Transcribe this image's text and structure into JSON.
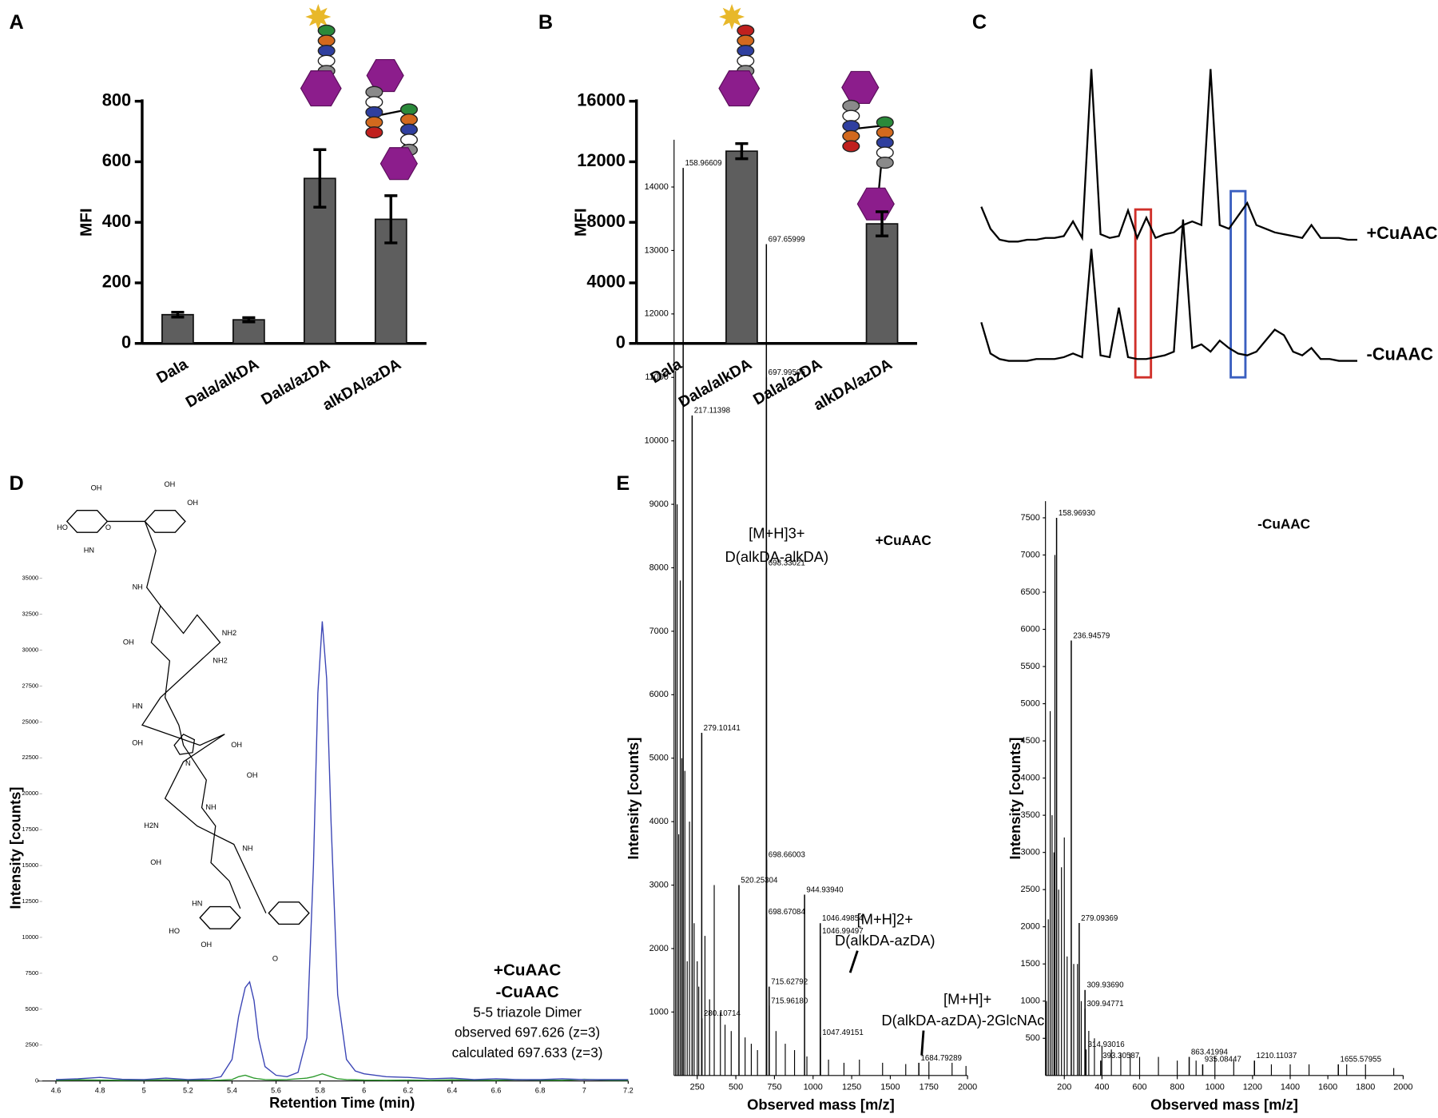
{
  "chart_data": [
    {
      "panel": "A",
      "type": "bar",
      "ylabel": "MFI",
      "categories": [
        "Dala",
        "Dala/alkDA",
        "Dala/azDA",
        "alkDA/azDA"
      ],
      "values": [
        95,
        78,
        545,
        410
      ],
      "errors": [
        8,
        7,
        95,
        78
      ],
      "color": "#5e5e5e",
      "ylim": [
        0,
        800
      ],
      "yticks": [
        0,
        200,
        400,
        600,
        800
      ]
    },
    {
      "panel": "B",
      "type": "bar",
      "ylabel": "MFI",
      "categories": [
        "Dala",
        "Dala/alkDA",
        "Dala/azDA",
        "alkDA/azDA"
      ],
      "values": [
        0,
        12700,
        0,
        7900
      ],
      "errors": [
        0,
        500,
        0,
        800
      ],
      "color": "#5e5e5e",
      "ylim": [
        0,
        16000
      ],
      "yticks": [
        0,
        4000,
        8000,
        12000,
        16000
      ]
    },
    {
      "panel": "C",
      "type": "traces",
      "series": [
        {
          "name": "+CuAAC",
          "color": "#000000",
          "values": [
            20,
            8,
            2,
            1,
            1,
            2,
            2,
            3,
            3,
            4,
            12,
            3,
            95,
            5,
            3,
            4,
            18,
            3,
            14,
            3,
            5,
            6,
            10,
            12,
            10,
            95,
            10,
            8,
            15,
            22,
            10,
            8,
            6,
            5,
            4,
            3,
            10,
            3,
            3,
            3,
            2,
            2
          ]
        },
        {
          "name": "-CuAAC",
          "color": "#000000",
          "values": [
            22,
            5,
            2,
            1,
            1,
            1,
            2,
            2,
            2,
            3,
            5,
            3,
            62,
            4,
            3,
            30,
            3,
            2,
            2,
            3,
            4,
            6,
            78,
            8,
            10,
            6,
            12,
            8,
            5,
            4,
            6,
            12,
            18,
            15,
            6,
            4,
            8,
            2,
            2,
            1,
            1,
            1
          ]
        }
      ]
    },
    {
      "panel": "D",
      "type": "line",
      "xlabel": "Retention Time (min)",
      "ylabel": "Intensity [counts]",
      "x": [
        4.6,
        4.7,
        4.8,
        4.9,
        5.0,
        5.1,
        5.2,
        5.3,
        5.35,
        5.4,
        5.43,
        5.46,
        5.48,
        5.5,
        5.52,
        5.55,
        5.6,
        5.65,
        5.7,
        5.74,
        5.77,
        5.79,
        5.81,
        5.83,
        5.85,
        5.88,
        5.92,
        5.96,
        6.0,
        6.1,
        6.2,
        6.3,
        6.4,
        6.5,
        6.6,
        6.7,
        6.8,
        6.9,
        7.0,
        7.1,
        7.2
      ],
      "series": [
        {
          "name": "+CuAAC",
          "color": "#3b45b5",
          "values": [
            100,
            150,
            250,
            120,
            100,
            200,
            100,
            150,
            300,
            1500,
            4500,
            6500,
            6900,
            5600,
            3000,
            1000,
            400,
            300,
            600,
            3000,
            15000,
            27000,
            32000,
            28000,
            18000,
            6000,
            1500,
            700,
            500,
            300,
            250,
            150,
            200,
            100,
            150,
            100,
            100,
            150,
            100,
            100,
            100
          ]
        },
        {
          "name": "-CuAAC",
          "color": "#2e9a2e",
          "values": [
            50,
            80,
            60,
            50,
            60,
            80,
            60,
            50,
            60,
            100,
            300,
            400,
            300,
            200,
            150,
            100,
            80,
            100,
            150,
            200,
            300,
            400,
            500,
            400,
            300,
            150,
            100,
            80,
            60,
            50,
            60,
            50,
            80,
            60,
            50,
            100,
            60,
            50,
            120,
            60,
            50
          ]
        }
      ],
      "xlim": [
        4.6,
        7.2
      ],
      "xticks": [
        4.6,
        4.8,
        5,
        5.2,
        5.4,
        5.6,
        5.8,
        6,
        6.2,
        6.4,
        6.6,
        6.8,
        7,
        7.2
      ],
      "ylim": [
        0,
        35000
      ],
      "yticks": [
        0,
        2500,
        5000,
        7500,
        10000,
        12500,
        15000,
        17500,
        20000,
        22500,
        25000,
        27500,
        30000,
        32500,
        35000
      ],
      "annotations": [
        "5-5 triazole Dimer",
        "observed 697.626 (z=3)",
        "calculated 697.633 (z=3)"
      ],
      "annotation_color": "#3b45b5",
      "structure_labels": [
        "OH",
        "OH",
        "OH",
        "HO",
        "HN",
        "O",
        "NH",
        "OH",
        "NH2",
        "NH2",
        "HN",
        "OH",
        "N",
        "OH",
        "OH",
        "H2N",
        "NH",
        "NH",
        "OH",
        "HN",
        "HO",
        "OH",
        "O"
      ]
    },
    {
      "panel": "E",
      "type": "stem",
      "label": "+CuAAC",
      "label_color": "#3b5bb5",
      "xlabel": "Observed mass [m/z]",
      "ylabel": "Intensity [counts]",
      "color": "#000000",
      "x": [
        158.96609,
        217.11398,
        279.10141,
        280.10714,
        520.25304,
        697.65999,
        697.99506,
        698.33021,
        698.66003,
        698.67084,
        715.62792,
        {
          "value": 715.9618,
          "label": "715.96180"
        },
        {
          "value": 944.9394,
          "label": "944.93940"
        },
        1046.49854,
        1046.99497,
        1047.49151,
        1684.79289
      ],
      "values": [
        14300,
        10400,
        5400,
        900,
        3000,
        13100,
        11000,
        8000,
        3400,
        2500,
        1400,
        1100,
        2850,
        2400,
        2200,
        600,
        200
      ],
      "noise_x": [
        110,
        120,
        130,
        140,
        150,
        170,
        185,
        200,
        230,
        250,
        260,
        300,
        330,
        360,
        400,
        430,
        470,
        560,
        600,
        640,
        700,
        760,
        820,
        880,
        960,
        1100,
        1200,
        1300,
        1450,
        1600,
        1750,
        1900,
        1990
      ],
      "noise_values": [
        11100,
        9000,
        3800,
        7800,
        5000,
        4800,
        1800,
        4000,
        2400,
        1800,
        1400,
        2200,
        1200,
        3000,
        1000,
        800,
        700,
        600,
        500,
        400,
        1200,
        700,
        500,
        400,
        300,
        250,
        200,
        250,
        200,
        180,
        220,
        200,
        150
      ],
      "xlim": [
        100,
        2000
      ],
      "xticks": [
        250,
        500,
        750,
        1000,
        1250,
        1500,
        1750,
        2000
      ],
      "ylim": [
        0,
        14600
      ],
      "yticks": [
        1000,
        2000,
        3000,
        4000,
        5000,
        6000,
        7000,
        8000,
        9000,
        10000,
        11000,
        12000,
        13000,
        14000
      ],
      "annotations": [
        "[M+H]3+",
        "D(alkDA-alkDA)",
        "[M+H]2+",
        "D(alkDA-azDA)",
        "[M+H]+",
        "D(alkDA-azDA)-2GlcNAc"
      ]
    },
    {
      "type": "stem",
      "label": "-CuAAC",
      "label_color": "#2e9a2e",
      "xlabel": "Observed mass [m/z]",
      "ylabel": "Intensity [counts]",
      "color": "#000000",
      "x": [
        {
          "value": 158.9693,
          "label": "158.96930"
        },
        236.94579,
        279.09369,
        {
          "value": 309.9369,
          "label": "309.93690"
        },
        309.94771,
        314.93016,
        393.30587,
        863.41994,
        935.08447,
        1210.11037,
        1655.57955
      ],
      "values": [
        7500,
        5850,
        2050,
        1150,
        900,
        350,
        200,
        250,
        150,
        200,
        150
      ],
      "noise_x": [
        105,
        115,
        125,
        135,
        145,
        150,
        170,
        185,
        200,
        215,
        250,
        270,
        290,
        330,
        360,
        400,
        450,
        500,
        550,
        600,
        700,
        800,
        900,
        1000,
        1100,
        1300,
        1400,
        1500,
        1700,
        1800,
        1950
      ],
      "noise_values": [
        1000,
        2100,
        4900,
        3500,
        3000,
        7000,
        2500,
        2800,
        3200,
        1600,
        1500,
        1500,
        1000,
        600,
        500,
        400,
        350,
        300,
        300,
        250,
        250,
        200,
        200,
        250,
        200,
        150,
        150,
        150,
        150,
        150,
        100
      ],
      "xlim": [
        100,
        2000
      ],
      "xticks": [
        200,
        400,
        600,
        800,
        1000,
        1200,
        1400,
        1600,
        1800,
        2000
      ],
      "ylim": [
        0,
        7600
      ],
      "yticks": [
        500,
        1000,
        1500,
        2000,
        2500,
        3000,
        3500,
        4000,
        4500,
        5000,
        5500,
        6000,
        6500,
        7000,
        7500
      ],
      "annotations": []
    }
  ]
}
